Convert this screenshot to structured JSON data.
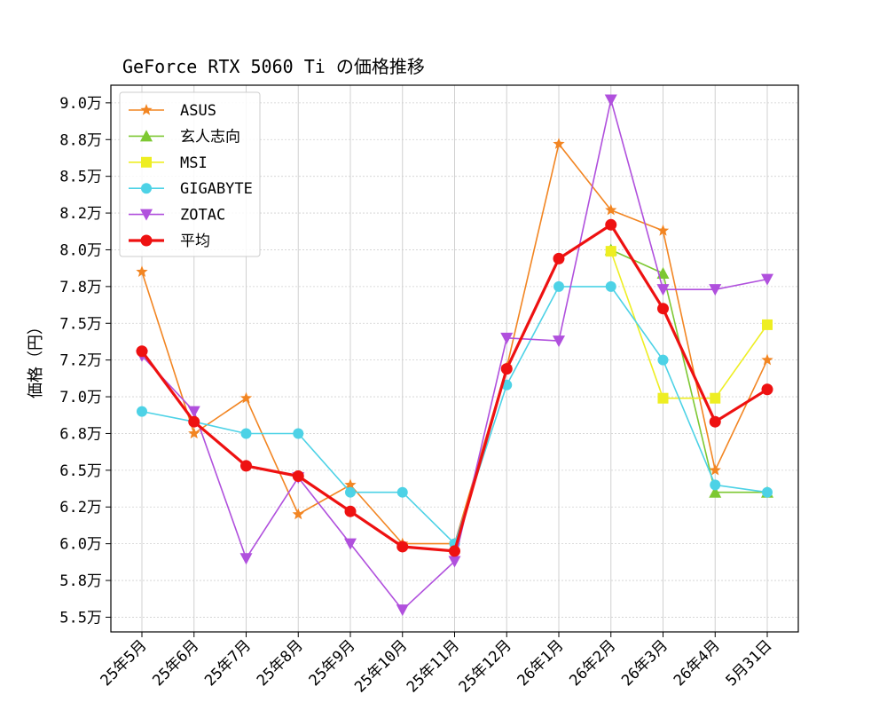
{
  "chart_data": {
    "type": "line",
    "title": "GeForce RTX 5060 Ti の価格推移",
    "xlabel": "",
    "ylabel": "価格（円）",
    "categories": [
      "25年5月",
      "25年6月",
      "25年7月",
      "25年8月",
      "25年9月",
      "25年10月",
      "25年11月",
      "25年12月",
      "26年1月",
      "26年2月",
      "26年3月",
      "26年4月",
      "5月31日"
    ],
    "y_ticks": [
      55000,
      57500,
      60000,
      62500,
      65000,
      67500,
      70000,
      72500,
      75000,
      77500,
      80000,
      82500,
      85000,
      87500,
      90000
    ],
    "y_tick_labels": [
      "5.5万",
      "5.8万",
      "6.0万",
      "6.2万",
      "6.5万",
      "6.8万",
      "7.0万",
      "7.2万",
      "7.5万",
      "7.8万",
      "8.0万",
      "8.2万",
      "8.5万",
      "8.8万",
      "9.0万"
    ],
    "ylim": [
      54000,
      91200
    ],
    "grid": true,
    "legend_position": "top-left",
    "series": [
      {
        "name": "ASUS",
        "color": "#f28522",
        "marker": "star",
        "values": [
          78500,
          67500,
          69900,
          62000,
          64000,
          60000,
          60000,
          72000,
          87200,
          82700,
          81300,
          65000,
          72500
        ]
      },
      {
        "name": "玄人志向",
        "color": "#7dc832",
        "marker": "triangle-up",
        "values": [
          null,
          null,
          null,
          null,
          null,
          null,
          null,
          null,
          null,
          80000,
          78400,
          63500,
          63500
        ]
      },
      {
        "name": "MSI",
        "color": "#eeee22",
        "marker": "square",
        "values": [
          null,
          null,
          null,
          null,
          null,
          null,
          null,
          null,
          null,
          79900,
          69900,
          69900,
          74900
        ]
      },
      {
        "name": "GIGABYTE",
        "color": "#4dd2e6",
        "marker": "circle",
        "values": [
          69000,
          68300,
          67500,
          67500,
          63500,
          63500,
          60000,
          70800,
          77500,
          77500,
          72500,
          64000,
          63500
        ]
      },
      {
        "name": "ZOTAC",
        "color": "#b050dd",
        "marker": "triangle-down",
        "values": [
          72800,
          69000,
          59000,
          64500,
          60000,
          55500,
          58800,
          74000,
          73800,
          90200,
          77300,
          77300,
          78000
        ]
      },
      {
        "name": "平均",
        "color": "#ee1111",
        "marker": "circle",
        "bold": true,
        "values": [
          73100,
          68300,
          65300,
          64600,
          62200,
          59800,
          59500,
          71900,
          79400,
          81700,
          76000,
          68300,
          70500
        ]
      }
    ]
  }
}
